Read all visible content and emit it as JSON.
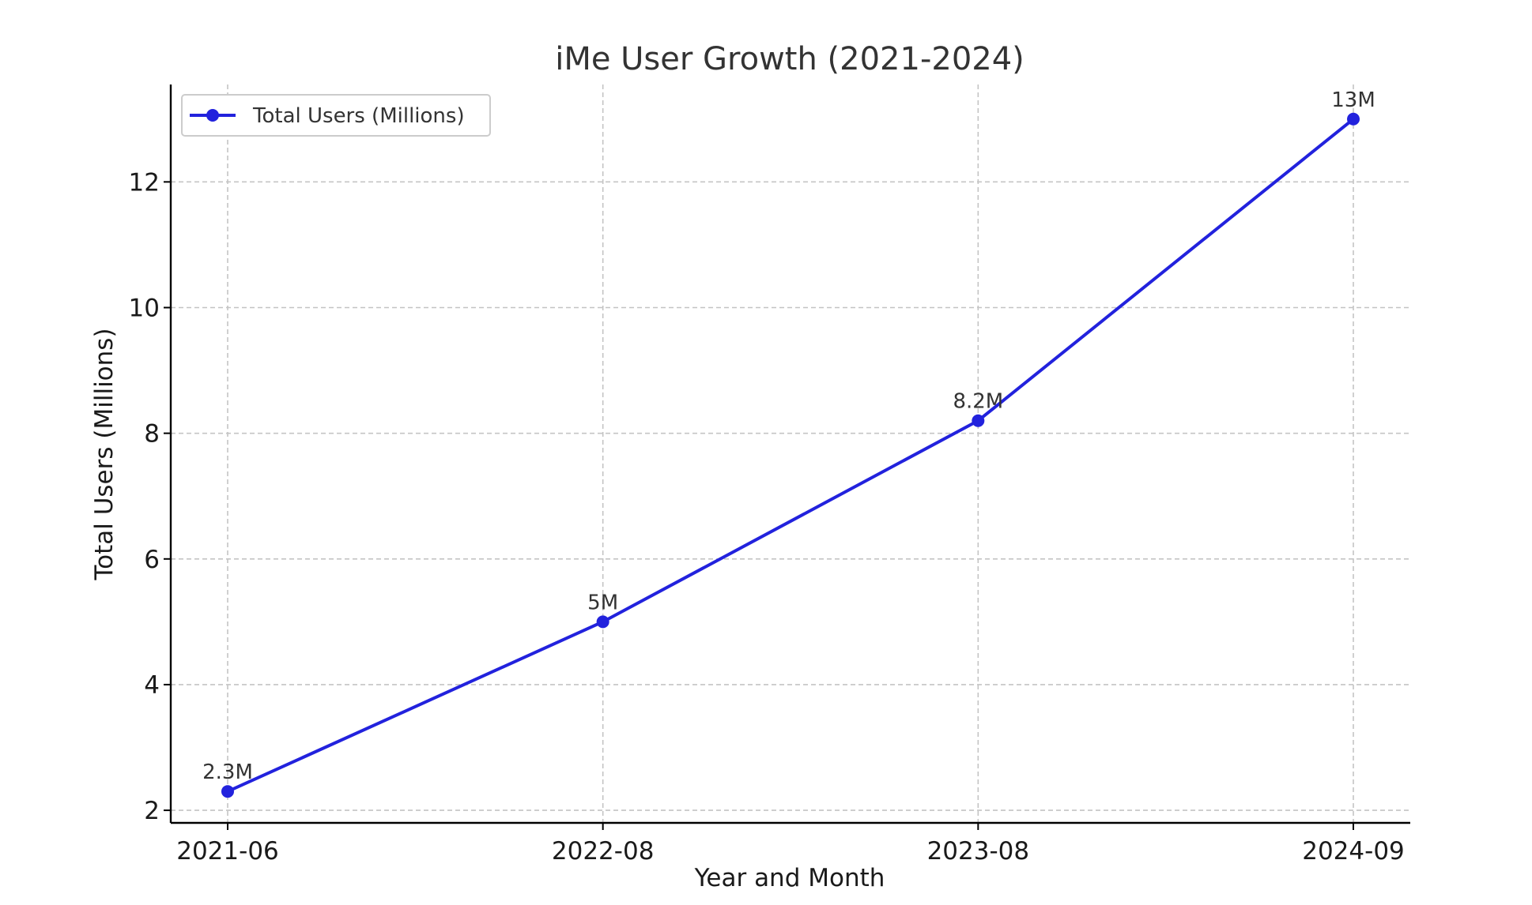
{
  "chart_data": {
    "type": "line",
    "title": "iMe User Growth (2021-2024)",
    "xlabel": "Year and Month",
    "ylabel": "Total Users (Millions)",
    "categories": [
      "2021-06",
      "2022-08",
      "2023-08",
      "2024-09"
    ],
    "series": [
      {
        "name": "Total Users (Millions)",
        "values": [
          2.3,
          5,
          8.2,
          13
        ],
        "labels": [
          "2.3M",
          "5M",
          "8.2M",
          "13M"
        ],
        "color": "#2222dd",
        "marker": "circle"
      }
    ],
    "yticks": [
      2,
      4,
      6,
      8,
      10,
      12
    ],
    "ytick_labels": [
      "2",
      "4",
      "6",
      "8",
      "10",
      "12"
    ],
    "ylim": [
      1.8,
      13.55
    ],
    "grid": true,
    "legend_position": "top-left"
  }
}
